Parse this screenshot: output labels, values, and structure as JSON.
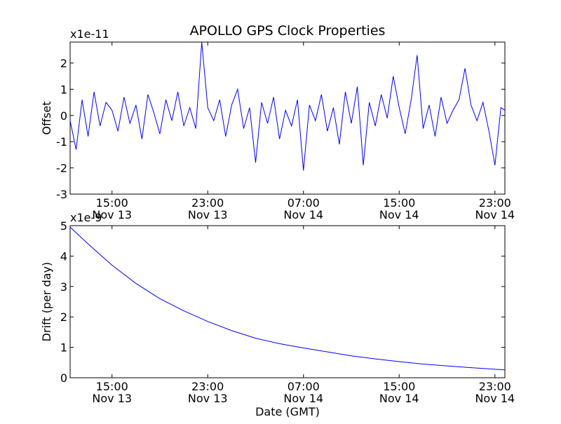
{
  "chart_data": [
    {
      "type": "line",
      "title": "APOLLO GPS Clock Properties",
      "xlabel": "",
      "ylabel": "Offset",
      "y_multiplier": "x1e-11",
      "x_range": [
        "2012-11-13 11:30",
        "2012-11-14 23:50"
      ],
      "ylim": [
        -3,
        2.8
      ],
      "yticks": [
        {
          "value": -3,
          "label": "-3"
        },
        {
          "value": -2,
          "label": "-2"
        },
        {
          "value": -1,
          "label": "-1"
        },
        {
          "value": 0,
          "label": "0"
        },
        {
          "value": 1,
          "label": "1"
        },
        {
          "value": 2,
          "label": "2"
        }
      ],
      "xticks": [
        {
          "time": "2012-11-13 15:00",
          "label1": "15:00",
          "label2": "Nov 13"
        },
        {
          "time": "2012-11-13 23:00",
          "label1": "23:00",
          "label2": "Nov 13"
        },
        {
          "time": "2012-11-14 07:00",
          "label1": "07:00",
          "label2": "Nov 14"
        },
        {
          "time": "2012-11-14 15:00",
          "label1": "15:00",
          "label2": "Nov 14"
        },
        {
          "time": "2012-11-14 23:00",
          "label1": "23:00",
          "label2": "Nov 14"
        }
      ],
      "grid": false,
      "series": [
        {
          "color": "#0000ff",
          "x": [
            "2012-11-13 11:30",
            "2012-11-13 12:00",
            "2012-11-13 12:30",
            "2012-11-13 13:00",
            "2012-11-13 13:30",
            "2012-11-13 14:00",
            "2012-11-13 14:30",
            "2012-11-13 15:00",
            "2012-11-13 15:30",
            "2012-11-13 16:00",
            "2012-11-13 16:30",
            "2012-11-13 17:00",
            "2012-11-13 17:30",
            "2012-11-13 18:00",
            "2012-11-13 18:30",
            "2012-11-13 19:00",
            "2012-11-13 19:30",
            "2012-11-13 20:00",
            "2012-11-13 20:30",
            "2012-11-13 21:00",
            "2012-11-13 21:30",
            "2012-11-13 22:00",
            "2012-11-13 22:30",
            "2012-11-13 23:00",
            "2012-11-13 23:30",
            "2012-11-14 00:00",
            "2012-11-14 00:30",
            "2012-11-14 01:00",
            "2012-11-14 01:30",
            "2012-11-14 02:00",
            "2012-11-14 02:30",
            "2012-11-14 03:00",
            "2012-11-14 03:30",
            "2012-11-14 04:00",
            "2012-11-14 04:30",
            "2012-11-14 05:00",
            "2012-11-14 05:30",
            "2012-11-14 06:00",
            "2012-11-14 06:30",
            "2012-11-14 07:00",
            "2012-11-14 07:30",
            "2012-11-14 08:00",
            "2012-11-14 08:30",
            "2012-11-14 09:00",
            "2012-11-14 09:30",
            "2012-11-14 10:00",
            "2012-11-14 10:30",
            "2012-11-14 11:00",
            "2012-11-14 11:30",
            "2012-11-14 12:00",
            "2012-11-14 12:30",
            "2012-11-14 13:00",
            "2012-11-14 13:30",
            "2012-11-14 14:00",
            "2012-11-14 14:30",
            "2012-11-14 15:00",
            "2012-11-14 15:30",
            "2012-11-14 16:00",
            "2012-11-14 16:30",
            "2012-11-14 17:00",
            "2012-11-14 17:30",
            "2012-11-14 18:00",
            "2012-11-14 18:30",
            "2012-11-14 19:00",
            "2012-11-14 19:30",
            "2012-11-14 20:00",
            "2012-11-14 20:30",
            "2012-11-14 21:00",
            "2012-11-14 21:30",
            "2012-11-14 22:00",
            "2012-11-14 22:30",
            "2012-11-14 23:00",
            "2012-11-14 23:30",
            "2012-11-14 23:50"
          ],
          "values": [
            -0.2,
            -1.3,
            0.6,
            -0.8,
            0.9,
            -0.4,
            0.5,
            0.2,
            -0.6,
            0.7,
            -0.3,
            0.4,
            -0.9,
            0.8,
            0.1,
            -0.7,
            0.6,
            -0.2,
            0.9,
            -0.4,
            0.3,
            -0.5,
            2.8,
            0.3,
            -0.2,
            0.6,
            -0.8,
            0.4,
            1.0,
            -0.5,
            0.3,
            -1.8,
            0.5,
            -0.3,
            0.7,
            -0.9,
            0.2,
            -0.4,
            0.6,
            -2.1,
            0.4,
            -0.2,
            0.8,
            -0.6,
            0.3,
            -1.1,
            0.9,
            -0.3,
            1.1,
            -1.9,
            0.5,
            -0.4,
            0.8,
            -0.1,
            1.5,
            0.3,
            -0.7,
            0.6,
            2.3,
            -0.5,
            0.4,
            -0.8,
            0.7,
            -0.3,
            0.2,
            0.6,
            1.8,
            0.4,
            -0.2,
            0.5,
            -0.6,
            -1.9,
            0.3,
            0.2
          ]
        }
      ]
    },
    {
      "type": "line",
      "title": "",
      "xlabel": "Date (GMT)",
      "ylabel": "Drift (per day)",
      "y_multiplier": "x1e-9",
      "x_range": [
        "2012-11-13 11:30",
        "2012-11-14 23:50"
      ],
      "ylim": [
        0,
        5
      ],
      "yticks": [
        {
          "value": 0,
          "label": "0"
        },
        {
          "value": 1,
          "label": "1"
        },
        {
          "value": 2,
          "label": "2"
        },
        {
          "value": 3,
          "label": "3"
        },
        {
          "value": 4,
          "label": "4"
        },
        {
          "value": 5,
          "label": "5"
        }
      ],
      "xticks": [
        {
          "time": "2012-11-13 15:00",
          "label1": "15:00",
          "label2": "Nov 13"
        },
        {
          "time": "2012-11-13 23:00",
          "label1": "23:00",
          "label2": "Nov 13"
        },
        {
          "time": "2012-11-14 07:00",
          "label1": "07:00",
          "label2": "Nov 14"
        },
        {
          "time": "2012-11-14 15:00",
          "label1": "15:00",
          "label2": "Nov 14"
        },
        {
          "time": "2012-11-14 23:00",
          "label1": "23:00",
          "label2": "Nov 14"
        }
      ],
      "grid": false,
      "series": [
        {
          "color": "#0000ff",
          "x": [
            "2012-11-13 11:30",
            "2012-11-13 13:00",
            "2012-11-13 15:00",
            "2012-11-13 17:00",
            "2012-11-13 19:00",
            "2012-11-13 21:00",
            "2012-11-13 23:00",
            "2012-11-14 01:00",
            "2012-11-14 03:00",
            "2012-11-14 05:00",
            "2012-11-14 07:00",
            "2012-11-14 09:00",
            "2012-11-14 11:00",
            "2012-11-14 13:00",
            "2012-11-14 15:00",
            "2012-11-14 17:00",
            "2012-11-14 19:00",
            "2012-11-14 21:00",
            "2012-11-14 23:00",
            "2012-11-14 23:50"
          ],
          "values": [
            4.95,
            4.4,
            3.7,
            3.1,
            2.6,
            2.2,
            1.85,
            1.55,
            1.3,
            1.12,
            0.98,
            0.85,
            0.72,
            0.62,
            0.53,
            0.45,
            0.39,
            0.33,
            0.28,
            0.26
          ]
        }
      ]
    }
  ]
}
